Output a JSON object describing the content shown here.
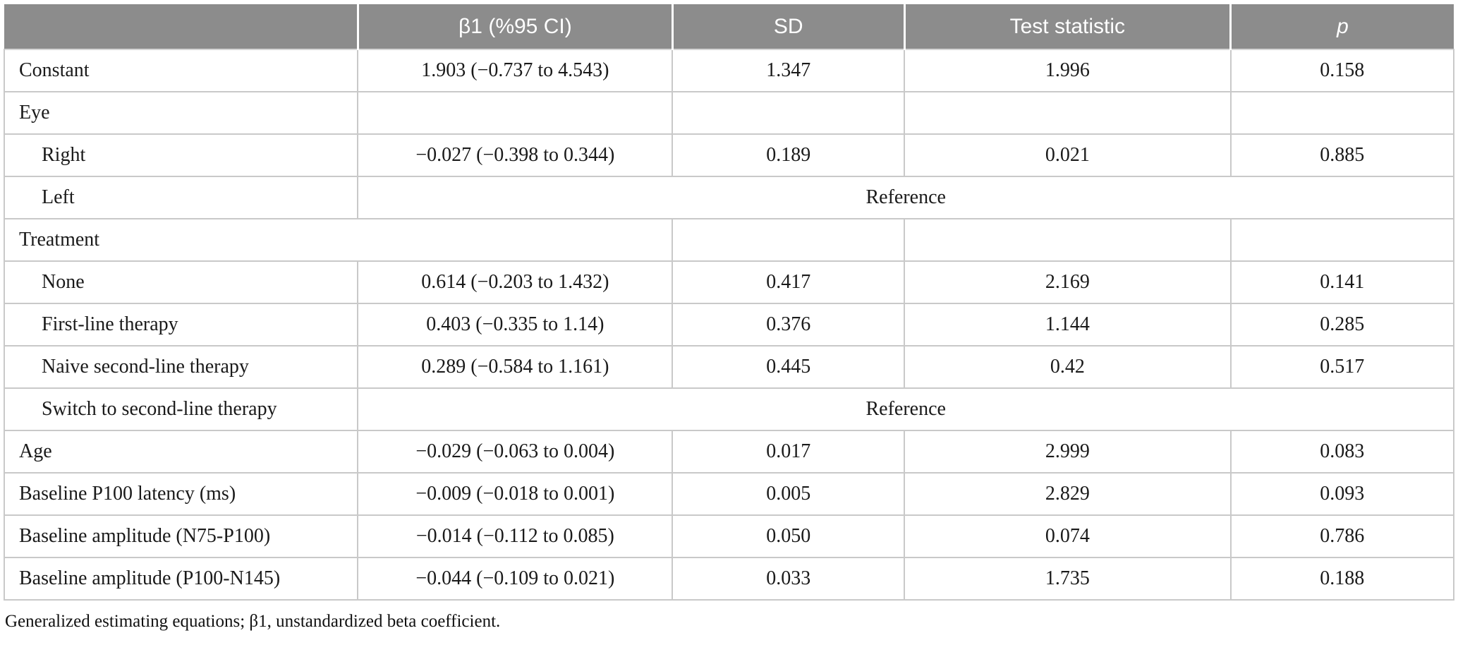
{
  "table": {
    "columns": {
      "label": "",
      "beta": "β1 (%95 CI)",
      "sd": "SD",
      "test_statistic": "Test statistic",
      "p": "p"
    },
    "rows": [
      {
        "label": "Constant",
        "cells": [
          "1.903 (−0.737 to 4.543)",
          "1.347",
          "1.996",
          "0.158"
        ]
      },
      {
        "label": "Eye",
        "cells": [
          "",
          "",
          "",
          ""
        ]
      },
      {
        "label": "Right",
        "cells": [
          "−0.027 (−0.398 to 0.344)",
          "0.189",
          "0.021",
          "0.885"
        ]
      },
      {
        "label": "Left",
        "reference": "Reference"
      },
      {
        "label": "Treatment",
        "cells": [
          "",
          "",
          ""
        ]
      },
      {
        "label": "None",
        "cells": [
          "0.614 (−0.203 to 1.432)",
          "0.417",
          "2.169",
          "0.141"
        ]
      },
      {
        "label": "First-line therapy",
        "cells": [
          "0.403 (−0.335 to 1.14)",
          "0.376",
          "1.144",
          "0.285"
        ]
      },
      {
        "label": "Naive second-line therapy",
        "cells": [
          "0.289 (−0.584 to 1.161)",
          "0.445",
          "0.42",
          "0.517"
        ]
      },
      {
        "label": "Switch to second-line therapy",
        "reference": "Reference"
      },
      {
        "label": "Age",
        "cells": [
          "−0.029 (−0.063 to 0.004)",
          "0.017",
          "2.999",
          "0.083"
        ]
      },
      {
        "label": "Baseline P100 latency (ms)",
        "cells": [
          "−0.009 (−0.018 to 0.001)",
          "0.005",
          "2.829",
          "0.093"
        ]
      },
      {
        "label": "Baseline amplitude (N75-P100)",
        "cells": [
          "−0.014 (−0.112 to 0.085)",
          "0.050",
          "0.074",
          "0.786"
        ]
      },
      {
        "label": "Baseline amplitude (P100-N145)",
        "cells": [
          "−0.044 (−0.109 to 0.021)",
          "0.033",
          "1.735",
          "0.188"
        ]
      }
    ]
  },
  "footnote": "Generalized estimating equations; β1, unstandardized beta coefficient.",
  "colors": {
    "header_bg": "#8c8c8c",
    "header_text": "#ffffff",
    "border": "#c9c9c9",
    "body_text": "#1a1a1a"
  }
}
